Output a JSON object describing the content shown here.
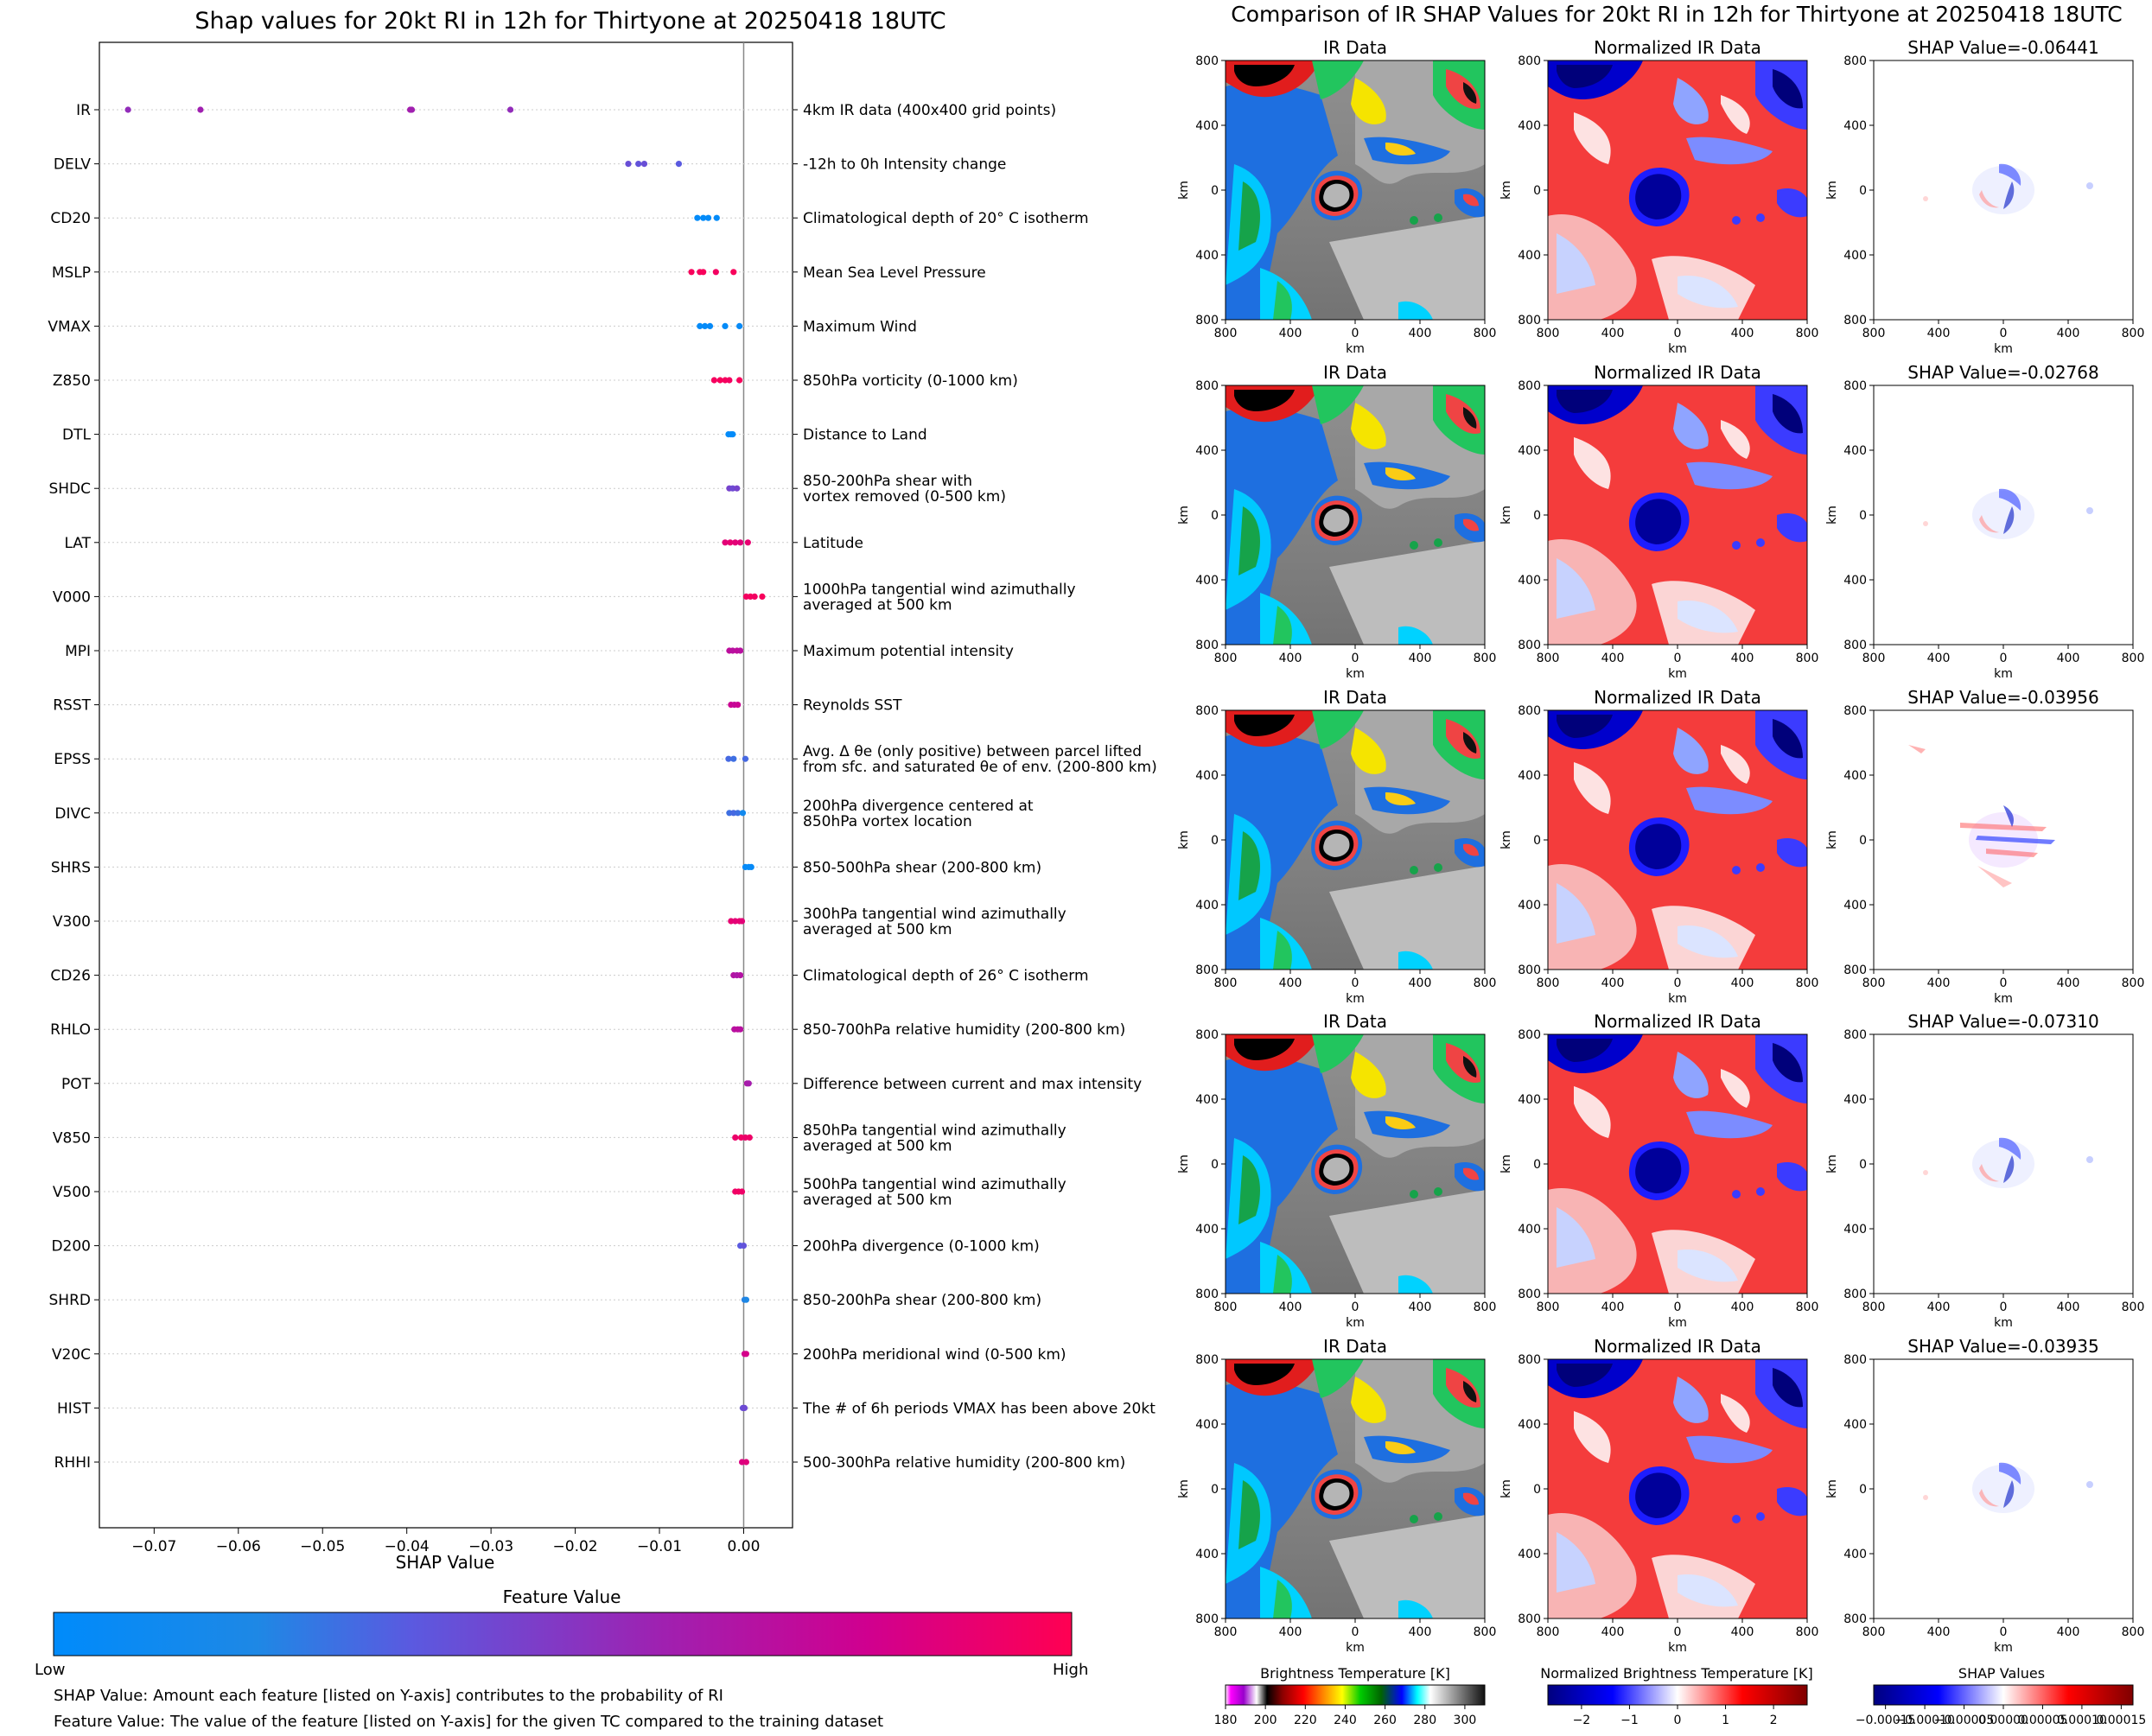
{
  "chart_data": [
    {
      "type": "scatter",
      "title": "Shap values for 20kt RI in 12h for Thirtyone at 20250418 18UTC",
      "xlabel": "SHAP Value",
      "xlim": [
        -0.0765,
        0.0058
      ],
      "xticks": [
        -0.07,
        -0.06,
        -0.05,
        -0.04,
        -0.03,
        -0.02,
        -0.01,
        0.0
      ],
      "xtick_labels": [
        "−0.07",
        "−0.06",
        "−0.05",
        "−0.04",
        "−0.03",
        "−0.02",
        "−0.01",
        "0.00"
      ],
      "features": [
        {
          "name": "IR",
          "desc": [
            "4km IR data (400x400 grid points)"
          ],
          "values": [
            -0.0731,
            -0.0645,
            -0.0396,
            -0.0394,
            -0.0277
          ],
          "fv": [
            0.55,
            0.6,
            0.62,
            0.6,
            0.55
          ]
        },
        {
          "name": "DELV",
          "desc": [
            "-12h to 0h Intensity change"
          ],
          "values": [
            -0.0137,
            -0.0125,
            -0.0118,
            -0.0077
          ],
          "fv": [
            0.4,
            0.38,
            0.4,
            0.35
          ]
        },
        {
          "name": "CD20",
          "desc": [
            "Climatological depth of 20° C isotherm"
          ],
          "values": [
            -0.0055,
            -0.0048,
            -0.0042,
            -0.0032
          ],
          "fv": [
            0.02,
            0.02,
            0.03,
            0.02
          ]
        },
        {
          "name": "MSLP",
          "desc": [
            "Mean Sea Level Pressure"
          ],
          "values": [
            -0.0062,
            -0.0052,
            -0.0048,
            -0.0033,
            -0.0012
          ],
          "fv": [
            0.97,
            0.96,
            0.97,
            0.95,
            0.97
          ]
        },
        {
          "name": "VMAX",
          "desc": [
            "Maximum Wind"
          ],
          "values": [
            -0.0052,
            -0.0046,
            -0.004,
            -0.0022,
            -0.0005
          ],
          "fv": [
            0.03,
            0.03,
            0.04,
            0.03,
            0.05
          ]
        },
        {
          "name": "Z850",
          "desc": [
            "850hPa vorticity (0-1000 km)"
          ],
          "values": [
            -0.0035,
            -0.0028,
            -0.0022,
            -0.0017,
            -0.0005
          ],
          "fv": [
            0.96,
            0.97,
            0.96,
            0.95,
            0.97
          ]
        },
        {
          "name": "DTL",
          "desc": [
            "Distance to Land"
          ],
          "values": [
            -0.0018,
            -0.0015,
            -0.0013
          ],
          "fv": [
            0.02,
            0.03,
            0.02
          ]
        },
        {
          "name": "SHDC",
          "desc": [
            "850-200hPa shear with",
            "vortex removed (0-500 km)"
          ],
          "values": [
            -0.0017,
            -0.0013,
            -0.0008
          ],
          "fv": [
            0.45,
            0.42,
            0.45
          ]
        },
        {
          "name": "LAT",
          "desc": [
            "Latitude"
          ],
          "values": [
            -0.0022,
            -0.0016,
            -0.001,
            -0.0004,
            0.0005
          ],
          "fv": [
            0.88,
            0.9,
            0.88,
            0.87,
            0.9
          ]
        },
        {
          "name": "V000",
          "desc": [
            "1000hPa tangential wind azimuthally",
            "averaged at 500 km"
          ],
          "values": [
            0.0003,
            0.0008,
            0.0013,
            0.0022
          ],
          "fv": [
            0.95,
            0.96,
            0.95,
            0.97
          ]
        },
        {
          "name": "MPI",
          "desc": [
            "Maximum potential intensity"
          ],
          "values": [
            -0.0017,
            -0.0013,
            -0.0008,
            -0.0004
          ],
          "fv": [
            0.72,
            0.7,
            0.72,
            0.7
          ]
        },
        {
          "name": "RSST",
          "desc": [
            "Reynolds SST"
          ],
          "values": [
            -0.0015,
            -0.0011,
            -0.0007
          ],
          "fv": [
            0.78,
            0.75,
            0.78
          ]
        },
        {
          "name": "EPSS",
          "desc": [
            "Avg. Δ θe (only positive) between parcel lifted",
            "from sfc. and saturated θe of env. (200-800 km)"
          ],
          "values": [
            -0.0018,
            -0.0012,
            0.0002
          ],
          "fv": [
            0.3,
            0.28,
            0.3
          ]
        },
        {
          "name": "DIVC",
          "desc": [
            "200hPa divergence centered at",
            "850hPa vortex location"
          ],
          "values": [
            -0.0017,
            -0.0012,
            -0.0007,
            -0.0001
          ],
          "fv": [
            0.28,
            0.3,
            0.28,
            0.12
          ]
        },
        {
          "name": "SHRS",
          "desc": [
            "850-500hPa shear (200-800 km)"
          ],
          "values": [
            0.0002,
            0.0006,
            0.0009
          ],
          "fv": [
            0.04,
            0.03,
            0.04
          ]
        },
        {
          "name": "V300",
          "desc": [
            "300hPa tangential wind azimuthally",
            "averaged at 500 km"
          ],
          "values": [
            -0.0015,
            -0.001,
            -0.0005,
            -0.0002
          ],
          "fv": [
            0.9,
            0.88,
            0.9,
            0.88
          ]
        },
        {
          "name": "CD26",
          "desc": [
            "Climatological depth of 26° C isotherm"
          ],
          "values": [
            -0.0012,
            -0.0008,
            -0.0004
          ],
          "fv": [
            0.68,
            0.65,
            0.68
          ]
        },
        {
          "name": "RHLO",
          "desc": [
            "850-700hPa relative humidity (200-800 km)"
          ],
          "values": [
            -0.0011,
            -0.0007,
            -0.0004
          ],
          "fv": [
            0.7,
            0.72,
            0.7
          ]
        },
        {
          "name": "POT",
          "desc": [
            "Difference between current and max intensity"
          ],
          "values": [
            0.0004,
            0.0006
          ],
          "fv": [
            0.65,
            0.62
          ]
        },
        {
          "name": "V850",
          "desc": [
            "850hPa tangential wind azimuthally",
            "averaged at 500 km"
          ],
          "values": [
            -0.001,
            -0.0003,
            0.0002,
            0.0007
          ],
          "fv": [
            0.92,
            0.94,
            0.92,
            0.93
          ]
        },
        {
          "name": "V500",
          "desc": [
            "500hPa tangential wind azimuthally",
            "averaged at 500 km"
          ],
          "values": [
            -0.001,
            -0.0006,
            -0.0002
          ],
          "fv": [
            0.93,
            0.95,
            0.93
          ]
        },
        {
          "name": "D200",
          "desc": [
            "200hPa divergence (0-1000 km)"
          ],
          "values": [
            -0.0004,
            0.0
          ],
          "fv": [
            0.35,
            0.38
          ]
        },
        {
          "name": "SHRD",
          "desc": [
            "850-200hPa shear (200-800 km)"
          ],
          "values": [
            0.0001,
            0.0003
          ],
          "fv": [
            0.22,
            0.2
          ]
        },
        {
          "name": "V20C",
          "desc": [
            "200hPa meridional wind (0-500 km)"
          ],
          "values": [
            0.0001,
            0.0003
          ],
          "fv": [
            0.8,
            0.82
          ]
        },
        {
          "name": "HIST",
          "desc": [
            "The # of 6h periods VMAX has been above 20kt"
          ],
          "values": [
            -0.0001,
            0.0001
          ],
          "fv": [
            0.4,
            0.42
          ]
        },
        {
          "name": "RHHI",
          "desc": [
            "500-300hPa relative humidity (200-800 km)"
          ],
          "values": [
            -0.0002,
            0.0003
          ],
          "fv": [
            0.85,
            0.87
          ]
        }
      ]
    },
    {
      "type": "heatmap",
      "title": "Comparison of IR SHAP Values for 20kt RI in 12h for Thirtyone at 20250418 18UTC",
      "panel_titles": [
        "IR Data",
        "Normalized IR Data"
      ],
      "shap_values": [
        "SHAP Value=-0.06441",
        "SHAP Value=-0.02768",
        "SHAP Value=-0.03956",
        "SHAP Value=-0.07310",
        "SHAP Value=-0.03935"
      ],
      "axis_label": "km",
      "xtick_labels": [
        "800",
        "400",
        "0",
        "400",
        "800"
      ],
      "ytick_labels": [
        "800",
        "400",
        "0",
        "400",
        "800"
      ],
      "colorbars": [
        {
          "label": "Brightness Temperature [K]",
          "ticks": [
            "180",
            "200",
            "220",
            "240",
            "260",
            "280",
            "300"
          ]
        },
        {
          "label": "Normalized Brightness Temperature [K]",
          "ticks": [
            "−2",
            "−1",
            "0",
            "1",
            "2"
          ]
        },
        {
          "label": "SHAP Values",
          "ticks": [
            "−0.00015",
            "−0.00010",
            "−0.00005",
            "0.00000",
            "0.00005",
            "0.00010",
            "0.00015"
          ]
        }
      ]
    }
  ],
  "feature_colorbar": {
    "title": "Feature Value",
    "low_label": "Low",
    "high_label": "High",
    "low_color": "#008bfb",
    "high_color": "#ff0052"
  },
  "notes": [
    "SHAP Value: Amount each feature [listed on Y-axis] contributes to the probability of RI",
    "Feature Value: The value of the feature [listed on Y-axis] for the given TC compared to the training dataset"
  ]
}
